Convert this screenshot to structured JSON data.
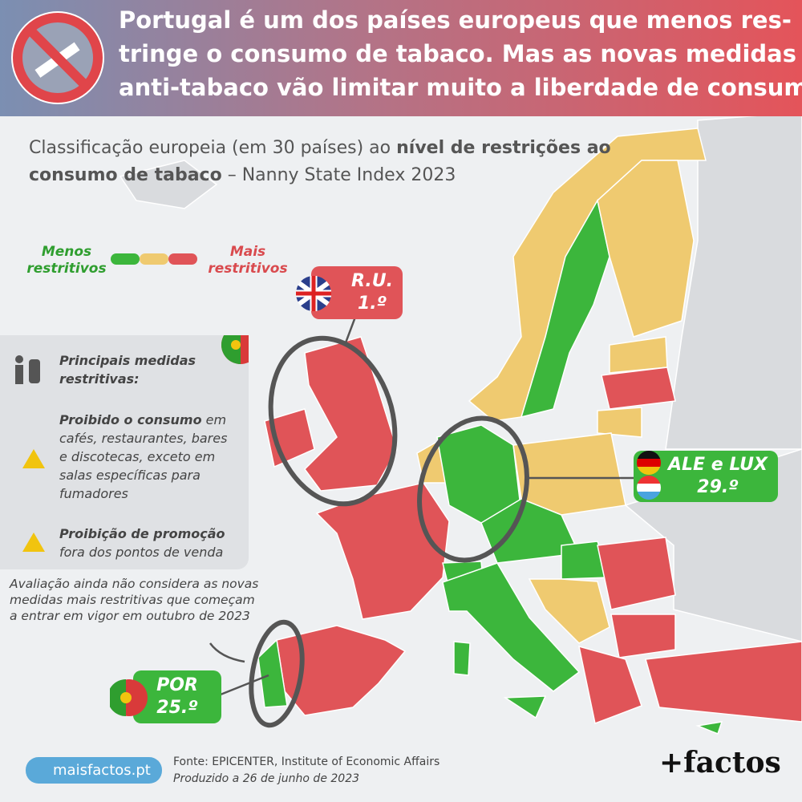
{
  "header": {
    "title_lines": [
      "Portugal é um dos países europeus que menos res-",
      "tringe o consumo de tabaco. Mas as novas medidas",
      "anti-tabaco vão limitar muito a liberdade de consumo"
    ]
  },
  "subtitle": [
    "Classificação europeia (em 30 países) ao ",
    "nível de restrições ao consumo de tabaco",
    " – Nanny State Index 2023"
  ],
  "legend": {
    "less": "Menos restritivos",
    "more": "Mais restritivos"
  },
  "callouts": [
    {
      "country": "R.U.",
      "rank": "1.º"
    },
    {
      "country": "ALE e LUX",
      "rank": "29.º"
    },
    {
      "country": "POR",
      "rank": "25.º"
    }
  ],
  "panel": {
    "title": "Principais medidas restritivas:",
    "items": [
      {
        "bold": "Proibido o consumo",
        "text": " em cafés, restaurantes, bares e discotecas, exceto em salas específicas para fumadores"
      },
      {
        "bold": "Proibição de promoção",
        "text": " fora dos pontos de venda"
      }
    ]
  },
  "note": "Avaliação ainda não considera as novas medidas mais restritivas que começam a entrar em vigor em outubro de 2023",
  "footer": {
    "site": "maisfactos.pt",
    "source": "Fonte: EPICENTER, Institute of Economic Affairs",
    "produced": "Produzido a 26 de junho de 2023",
    "logo": "+factos"
  }
}
